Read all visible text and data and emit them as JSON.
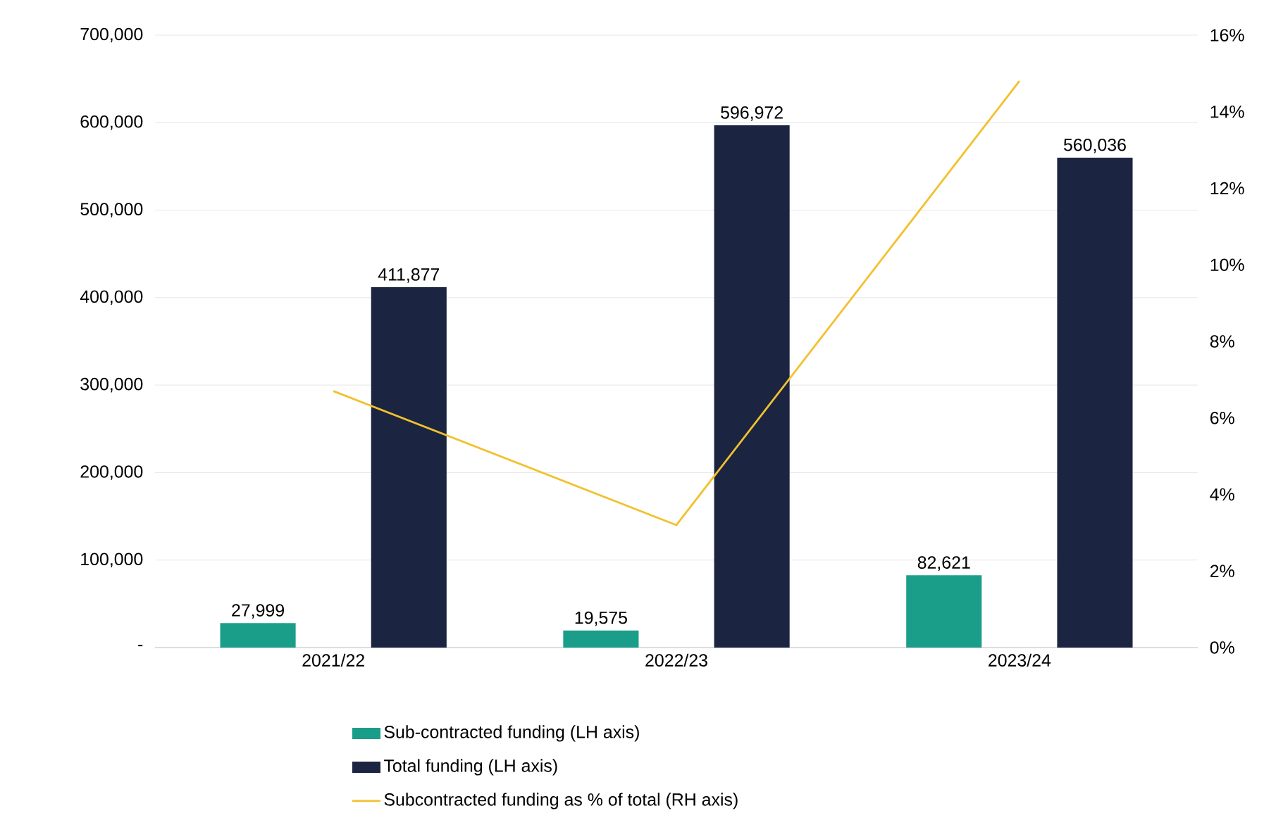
{
  "chart_data": {
    "type": "bar",
    "categories": [
      "2021/22",
      "2022/23",
      "2023/24"
    ],
    "series": [
      {
        "name": "Sub-contracted funding (LH axis)",
        "color": "#1a9e8a",
        "values": [
          27999,
          19575,
          82621
        ],
        "value_labels": [
          "27,999",
          "19,575",
          "82,621"
        ]
      },
      {
        "name": "Total funding (LH axis)",
        "color": "#1b2440",
        "values": [
          411877,
          596972,
          560036
        ],
        "value_labels": [
          "411,877",
          "596,972",
          "560,036"
        ]
      },
      {
        "name": "Subcontracted funding as % of total (RH axis)",
        "type": "line",
        "axis": "y2",
        "color": "#f2c12e",
        "values": [
          6.7,
          3.2,
          14.8
        ]
      }
    ],
    "ylim": [
      0,
      700000
    ],
    "yticks": [
      {
        "value": 0,
        "label": "-"
      },
      {
        "value": 100000,
        "label": "100,000"
      },
      {
        "value": 200000,
        "label": "200,000"
      },
      {
        "value": 300000,
        "label": "300,000"
      },
      {
        "value": 400000,
        "label": "400,000"
      },
      {
        "value": 500000,
        "label": "500,000"
      },
      {
        "value": 600000,
        "label": "600,000"
      },
      {
        "value": 700000,
        "label": "700,000"
      }
    ],
    "y2lim": [
      0,
      16
    ],
    "y2ticks": [
      {
        "value": 0,
        "label": "0%"
      },
      {
        "value": 2,
        "label": "2%"
      },
      {
        "value": 4,
        "label": "4%"
      },
      {
        "value": 6,
        "label": "6%"
      },
      {
        "value": 8,
        "label": "8%"
      },
      {
        "value": 10,
        "label": "10%"
      },
      {
        "value": 12,
        "label": "12%"
      },
      {
        "value": 14,
        "label": "14%"
      },
      {
        "value": 16,
        "label": "16%"
      }
    ],
    "grid": "y",
    "legend": "bottom"
  }
}
